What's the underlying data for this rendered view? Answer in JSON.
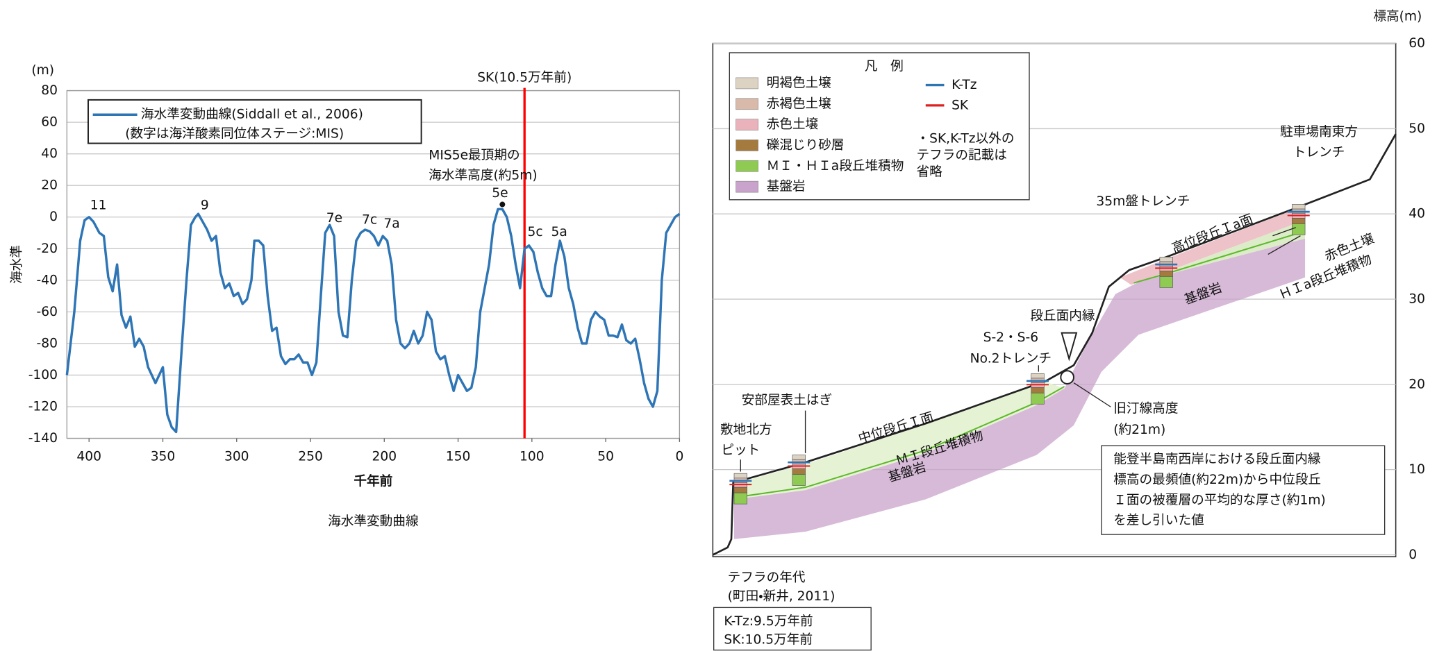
{
  "chart_data": {
    "type": "line",
    "title": "海水準変動曲線",
    "xlabel": "千年前",
    "ylabel": "海水準",
    "yunit": "(m)",
    "xlim": [
      415,
      0
    ],
    "ylim": [
      -140,
      80
    ],
    "xticks": [
      400,
      350,
      300,
      250,
      200,
      150,
      100,
      50,
      0
    ],
    "yticks": [
      -140,
      -120,
      -100,
      -80,
      -60,
      -40,
      -20,
      0,
      20,
      40,
      60,
      80
    ],
    "grid": true,
    "legend_note": "(数字は海洋酸素同位体ステージ:MIS)",
    "x": [
      415,
      410,
      406,
      403,
      400,
      397,
      393,
      390,
      387,
      384,
      381,
      378,
      375,
      372,
      369,
      366,
      363,
      360,
      355,
      350,
      347,
      344,
      341,
      337,
      334,
      331,
      328,
      326,
      323,
      320,
      317,
      314,
      311,
      308,
      305,
      302,
      299,
      296,
      293,
      290,
      288,
      285,
      282,
      279,
      276,
      273,
      270,
      267,
      264,
      261,
      258,
      255,
      252,
      249,
      246,
      243,
      240,
      237,
      234,
      231,
      228,
      225,
      222,
      219,
      216,
      213,
      210,
      207,
      204,
      201,
      198,
      195,
      192,
      189,
      186,
      183,
      180,
      177,
      174,
      171,
      168,
      165,
      162,
      159,
      156,
      153,
      150,
      147,
      144,
      141,
      138,
      135,
      132,
      129,
      126,
      123,
      120,
      117,
      114,
      111,
      108,
      105,
      102,
      99,
      96,
      93,
      90,
      87,
      84,
      81,
      78,
      75,
      72,
      69,
      66,
      63,
      60,
      57,
      54,
      51,
      48,
      45,
      42,
      39,
      36,
      33,
      30,
      27,
      24,
      21,
      18,
      15,
      12,
      9,
      6,
      3,
      0
    ],
    "series": [
      {
        "name": "海水準変動曲線(Siddall et al., 2006)",
        "color": "#2e75b6",
        "values": [
          -100,
          -60,
          -15,
          -2,
          0,
          -3,
          -10,
          -12,
          -38,
          -47,
          -30,
          -62,
          -70,
          -63,
          -82,
          -77,
          -82,
          -95,
          -105,
          -95,
          -125,
          -133,
          -136,
          -80,
          -40,
          -5,
          0,
          2,
          -3,
          -8,
          -15,
          -12,
          -35,
          -45,
          -42,
          -50,
          -48,
          -55,
          -52,
          -40,
          -15,
          -15,
          -18,
          -50,
          -72,
          -70,
          -88,
          -93,
          -90,
          -90,
          -87,
          -92,
          -92,
          -100,
          -92,
          -50,
          -10,
          -5,
          -12,
          -60,
          -75,
          -76,
          -40,
          -15,
          -10,
          -8,
          -9,
          -12,
          -18,
          -12,
          -15,
          -30,
          -65,
          -80,
          -83,
          -80,
          -72,
          -80,
          -75,
          -60,
          -65,
          -85,
          -90,
          -88,
          -100,
          -110,
          -100,
          -105,
          -110,
          -108,
          -95,
          -60,
          -45,
          -30,
          -5,
          5,
          5,
          0,
          -12,
          -30,
          -45,
          -20,
          -18,
          -22,
          -35,
          -45,
          -50,
          -50,
          -30,
          -15,
          -25,
          -45,
          -55,
          -70,
          -80,
          -80,
          -65,
          -60,
          -63,
          -65,
          -75,
          -75,
          -76,
          -68,
          -78,
          -80,
          -77,
          -90,
          -105,
          -115,
          -120,
          -110,
          -40,
          -10,
          -5,
          0,
          2
        ]
      }
    ],
    "annotations": [
      "11",
      "9",
      "7e",
      "7c",
      "7a",
      "5e",
      "5c",
      "5a"
    ],
    "peak_note": [
      "MIS5e最頂期の",
      "海水準高度(約5m)"
    ],
    "peak_point": {
      "x": 120,
      "y": 8
    },
    "sk_line": {
      "x": 105,
      "label": "SK(10.5万年前)",
      "color": "#ff0000"
    }
  },
  "diagram": {
    "ylabel": "標高(m)",
    "ylim": [
      0,
      60
    ],
    "yticks": [
      0,
      10,
      20,
      30,
      40,
      50,
      60
    ],
    "legend": {
      "title": "凡　例",
      "items": [
        {
          "name": "明褐色土壌",
          "color": "#ddd3c3"
        },
        {
          "name": "赤褐色土壌",
          "color": "#d9b9aa"
        },
        {
          "name": "赤色土壌",
          "color": "#eab3bb"
        },
        {
          "name": "礫混じり砂層",
          "color": "#a57a3e"
        },
        {
          "name": "ＭＩ・ＨＩa段丘堆積物",
          "color": "#8fcb52"
        },
        {
          "name": "基盤岩",
          "color": "#c9a3cb"
        }
      ],
      "lines": [
        {
          "name": "K-Tz",
          "color": "#2e75b6"
        },
        {
          "name": "SK",
          "color": "#e02020"
        }
      ],
      "note": [
        "・SK,K-Tz以外の",
        "テフラの記載は",
        "省略"
      ]
    },
    "labels": [
      "駐車場南東方",
      "トレンチ",
      "35m盤トレンチ",
      "高位段丘Ｉa面",
      "赤色土壌",
      "ＨＩa段丘堆積物",
      "基盤岩",
      "段丘面内縁",
      "S-2・S-6",
      "No.2トレンチ",
      "安部屋表土はぎ",
      "中位段丘Ｉ面",
      "ＭＩ段丘堆積物",
      "基盤岩",
      "敷地北方",
      "ピット",
      "旧汀線高度",
      "(約21m)"
    ],
    "note_box": [
      "能登半島南西岸における段丘面内縁",
      "標高の最頻値(約22m)から中位段丘",
      "Ｉ面の被覆層の平均的な厚さ(約1m)",
      "を差し引いた値"
    ],
    "tephra_title": [
      "テフラの年代",
      "(町田・新井, 2011)"
    ],
    "tephra_box": [
      "K-Tz:9.5万年前",
      "SK:10.5万年前"
    ]
  }
}
